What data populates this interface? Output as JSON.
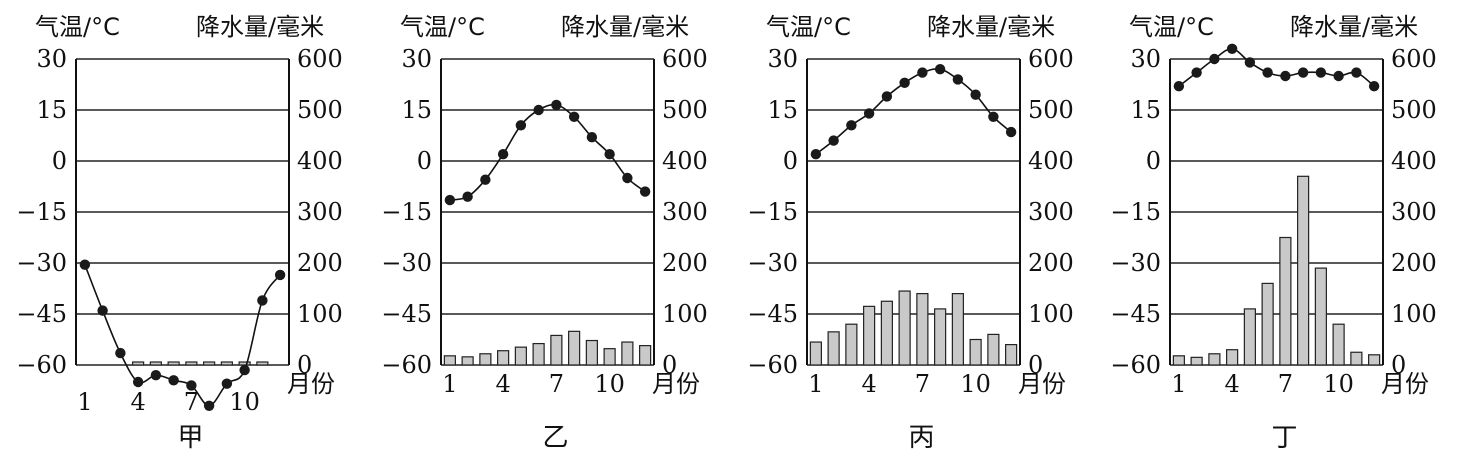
{
  "labels": {
    "left_axis": "气温/°C",
    "right_axis": "降水量/毫米",
    "x_unit": "月份"
  },
  "chart_data": [
    {
      "type": "bar+line",
      "caption": "甲",
      "temp_ticks": [
        "30",
        "15",
        "0",
        "−15",
        "−30",
        "−45",
        "−60"
      ],
      "precip_ticks": [
        "600",
        "500",
        "400",
        "300",
        "200",
        "100",
        "0"
      ],
      "x_ticks": [
        "1",
        "4",
        "7",
        "10"
      ],
      "ylim_temp": [
        -60,
        30
      ],
      "ylim_precip": [
        0,
        600
      ],
      "months": [
        1,
        2,
        3,
        4,
        5,
        6,
        7,
        8,
        9,
        10,
        11,
        12
      ],
      "temperature": [
        -30.5,
        -44,
        -56.5,
        -65,
        -63,
        -64.5,
        -66,
        -72,
        -65.5,
        -61.5,
        -41,
        -33.5
      ],
      "precipitation": [
        null,
        null,
        null,
        0,
        0,
        0,
        0,
        0,
        5,
        0,
        0,
        null
      ]
    },
    {
      "type": "bar+line",
      "caption": "乙",
      "temp_ticks": [
        "30",
        "15",
        "0",
        "−15",
        "−30",
        "−45",
        "−60"
      ],
      "precip_ticks": [
        "600",
        "500",
        "400",
        "300",
        "200",
        "100",
        "0"
      ],
      "x_ticks": [
        "1",
        "4",
        "7",
        "10"
      ],
      "ylim_temp": [
        -60,
        30
      ],
      "ylim_precip": [
        0,
        600
      ],
      "months": [
        1,
        2,
        3,
        4,
        5,
        6,
        7,
        8,
        9,
        10,
        11,
        12
      ],
      "temperature": [
        -11.5,
        -10.5,
        -5.5,
        2,
        10.5,
        15,
        16.5,
        13,
        7,
        2,
        -5,
        -9
      ],
      "precipitation": [
        18,
        16,
        22,
        28,
        35,
        42,
        58,
        66,
        48,
        32,
        45,
        38
      ]
    },
    {
      "type": "bar+line",
      "caption": "丙",
      "temp_ticks": [
        "30",
        "15",
        "0",
        "−15",
        "−30",
        "−45",
        "−60"
      ],
      "precip_ticks": [
        "600",
        "500",
        "400",
        "300",
        "200",
        "100",
        "0"
      ],
      "x_ticks": [
        "1",
        "4",
        "7",
        "10"
      ],
      "ylim_temp": [
        -60,
        30
      ],
      "ylim_precip": [
        0,
        600
      ],
      "months": [
        1,
        2,
        3,
        4,
        5,
        6,
        7,
        8,
        9,
        10,
        11,
        12
      ],
      "temperature": [
        2,
        6,
        10.5,
        14,
        19,
        23,
        26,
        27,
        24,
        19.5,
        13,
        8.5
      ],
      "precipitation": [
        45,
        65,
        80,
        115,
        125,
        145,
        140,
        110,
        140,
        50,
        60,
        40
      ]
    },
    {
      "type": "bar+line",
      "caption": "丁",
      "temp_ticks": [
        "30",
        "15",
        "0",
        "−15",
        "−30",
        "−45",
        "−60"
      ],
      "precip_ticks": [
        "600",
        "500",
        "400",
        "300",
        "200",
        "100",
        "0"
      ],
      "x_ticks": [
        "1",
        "4",
        "7",
        "10"
      ],
      "ylim_temp": [
        -60,
        30
      ],
      "ylim_precip": [
        0,
        600
      ],
      "months": [
        1,
        2,
        3,
        4,
        5,
        6,
        7,
        8,
        9,
        10,
        11,
        12
      ],
      "temperature": [
        22,
        26,
        30,
        33,
        29,
        26,
        25,
        26,
        26,
        25,
        26,
        22
      ],
      "precipitation": [
        18,
        15,
        22,
        30,
        110,
        160,
        250,
        370,
        190,
        80,
        25,
        20
      ]
    }
  ]
}
